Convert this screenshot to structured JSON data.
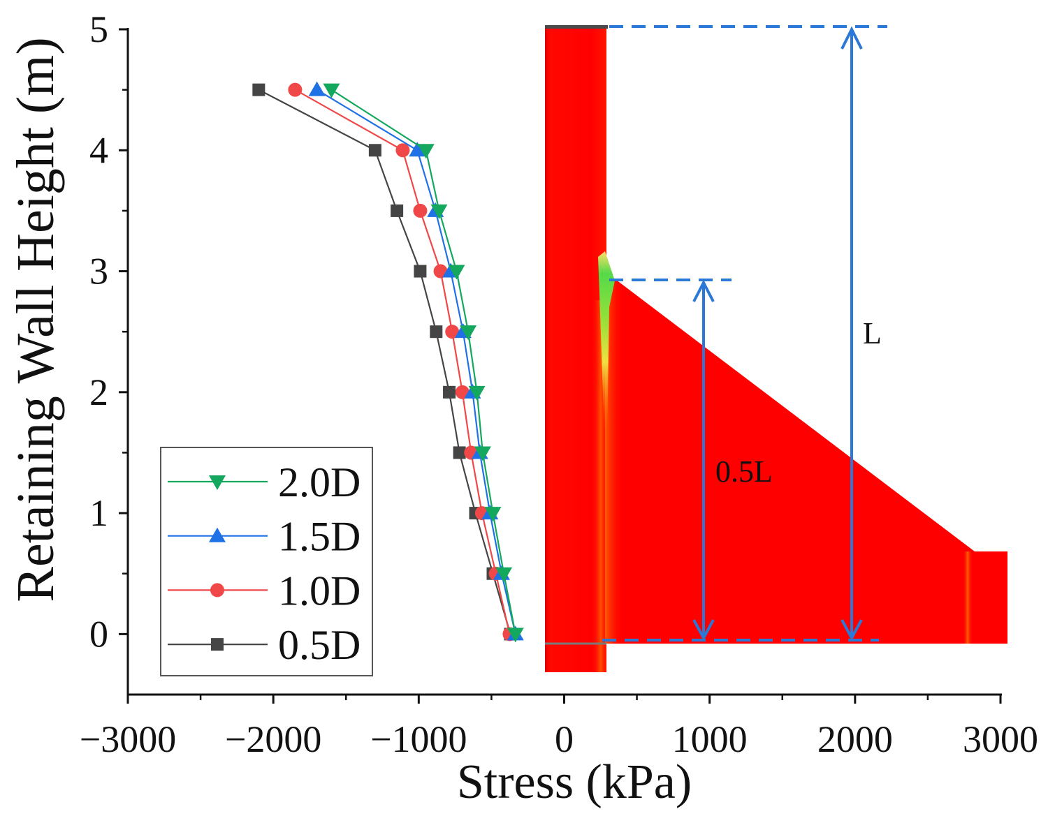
{
  "chart_data": {
    "type": "line",
    "title": "",
    "xlabel": "Stress (kPa)",
    "ylabel": "Retaining Wall Height (m)",
    "xlim": [
      -3000,
      3000
    ],
    "ylim": [
      -0.5,
      5
    ],
    "xticks": [
      -3000,
      -2000,
      -1000,
      0,
      1000,
      2000,
      3000
    ],
    "xtick_labels": [
      "−3000",
      "−2000",
      "−1000",
      "0",
      "1000",
      "2000",
      "3000"
    ],
    "yticks": [
      0,
      1,
      2,
      3,
      4,
      5
    ],
    "ytick_labels": [
      "0",
      "1",
      "2",
      "3",
      "4",
      "5"
    ],
    "grid": false,
    "legend_position": "lower-left",
    "y": [
      0,
      0.5,
      1,
      1.5,
      2,
      2.5,
      3,
      3.5,
      4,
      4.5
    ],
    "series": [
      {
        "name": "2.0D",
        "marker": "triangle-down",
        "color": "#13A85E",
        "x": [
          -335,
          -415,
          -490,
          -560,
          -600,
          -660,
          -740,
          -860,
          -950,
          -1600
        ]
      },
      {
        "name": "1.5D",
        "marker": "triangle-up",
        "color": "#1F72E6",
        "x": [
          -335,
          -430,
          -510,
          -580,
          -630,
          -695,
          -780,
          -885,
          -1010,
          -1700
        ]
      },
      {
        "name": "1.0D",
        "marker": "circle",
        "color": "#F04848",
        "x": [
          -375,
          -470,
          -565,
          -640,
          -700,
          -770,
          -850,
          -990,
          -1110,
          -1850
        ]
      },
      {
        "name": "0.5D",
        "marker": "square",
        "color": "#454545",
        "x": [
          -370,
          -490,
          -610,
          -720,
          -790,
          -880,
          -990,
          -1150,
          -1300,
          -2100
        ]
      }
    ],
    "annotations": [
      {
        "text": "0.5L"
      },
      {
        "text": "L"
      }
    ]
  }
}
